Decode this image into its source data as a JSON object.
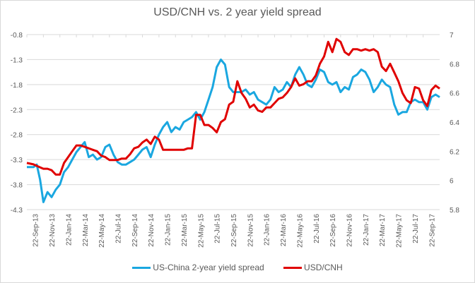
{
  "chart_data": {
    "type": "line",
    "title": "USD/CNH vs. 2 year yield spread",
    "xlabel": "",
    "ylabel_left": "",
    "ylabel_right": "",
    "grid": true,
    "legend_position": "bottom",
    "x_ticks": [
      "22-Sep-13",
      "22-Nov-13",
      "22-Jan-14",
      "22-Mar-14",
      "22-May-14",
      "22-Jul-14",
      "22-Sep-14",
      "22-Nov-14",
      "22-Jan-15",
      "22-Mar-15",
      "22-May-15",
      "22-Jul-15",
      "22-Sep-15",
      "22-Nov-15",
      "22-Jan-16",
      "22-Mar-16",
      "22-May-16",
      "22-Jul-16",
      "22-Sep-16",
      "22-Nov-16",
      "22-Jan-17",
      "22-Mar-17",
      "22-May-17",
      "22-Jul-17",
      "22-Sep-17"
    ],
    "y_left": {
      "ticks": [
        "-0.8",
        "-1.3",
        "-1.8",
        "-2.3",
        "-2.8",
        "-3.3",
        "-3.8",
        "-4.3"
      ],
      "range": [
        -4.3,
        -0.8
      ]
    },
    "y_right": {
      "ticks": [
        "7",
        "6.8",
        "6.6",
        "6.4",
        "6.2",
        "6",
        "5.8"
      ],
      "range": [
        5.8,
        7.0
      ]
    },
    "x_range_months": [
      0,
      50
    ],
    "series": [
      {
        "name": "US-China 2-year yield spread",
        "axis": "left",
        "color": "#1aa7e0",
        "x_months": [
          0,
          0.8,
          1.2,
          1.6,
          2.0,
          2.5,
          3.0,
          3.5,
          4.0,
          4.5,
          5.0,
          5.5,
          6.0,
          6.5,
          7.0,
          7.5,
          8.0,
          8.5,
          9.0,
          9.5,
          10.0,
          10.5,
          11.0,
          11.5,
          12.0,
          12.5,
          13.0,
          13.5,
          14.0,
          14.5,
          15.0,
          15.5,
          16.0,
          16.5,
          17.0,
          17.5,
          18.0,
          18.5,
          19.0,
          19.5,
          20.0,
          20.5,
          21.0,
          21.5,
          22.0,
          22.5,
          23.0,
          23.5,
          24.0,
          24.5,
          25.0,
          25.5,
          26.0,
          26.5,
          27.0,
          27.5,
          28.0,
          28.5,
          29.0,
          29.5,
          30.0,
          30.5,
          31.0,
          31.5,
          32.0,
          32.5,
          33.0,
          33.5,
          34.0,
          34.5,
          35.0,
          35.5,
          36.0,
          36.5,
          37.0,
          37.5,
          38.0,
          38.5,
          39.0,
          39.5,
          40.0,
          40.5,
          41.0,
          41.5,
          42.0,
          42.5,
          43.0,
          43.5,
          44.0,
          44.5,
          45.0,
          45.5,
          46.0,
          46.5,
          47.0,
          47.5,
          48.0,
          48.5,
          49.0,
          49.5,
          50.0
        ],
        "values": [
          -3.45,
          -3.45,
          -3.4,
          -3.7,
          -4.15,
          -3.95,
          -4.05,
          -3.9,
          -3.8,
          -3.55,
          -3.45,
          -3.3,
          -3.15,
          -3.05,
          -2.95,
          -3.25,
          -3.2,
          -3.3,
          -3.25,
          -3.05,
          -3.0,
          -3.2,
          -3.35,
          -3.4,
          -3.4,
          -3.35,
          -3.3,
          -3.2,
          -3.1,
          -3.05,
          -3.25,
          -3.0,
          -2.8,
          -2.65,
          -2.55,
          -2.75,
          -2.65,
          -2.7,
          -2.55,
          -2.5,
          -2.45,
          -2.35,
          -2.5,
          -2.35,
          -2.1,
          -1.85,
          -1.45,
          -1.3,
          -1.4,
          -1.85,
          -1.95,
          -1.95,
          -1.95,
          -1.9,
          -2.0,
          -1.95,
          -2.1,
          -2.15,
          -2.2,
          -2.1,
          -1.85,
          -1.95,
          -1.9,
          -1.75,
          -1.85,
          -1.6,
          -1.45,
          -1.6,
          -1.8,
          -1.85,
          -1.7,
          -1.5,
          -1.55,
          -1.75,
          -1.8,
          -1.75,
          -1.95,
          -1.85,
          -1.9,
          -1.65,
          -1.6,
          -1.5,
          -1.55,
          -1.7,
          -1.95,
          -1.85,
          -1.7,
          -1.8,
          -1.85,
          -2.2,
          -2.4,
          -2.35,
          -2.35,
          -2.15,
          -2.1,
          -2.15,
          -2.15,
          -2.3,
          -2.05,
          -2.0,
          -2.05
        ]
      },
      {
        "name": "USD/CNH",
        "axis": "right",
        "color": "#e00000",
        "x_months": [
          0,
          0.8,
          1.2,
          1.6,
          2.0,
          2.5,
          3.0,
          3.5,
          4.0,
          4.5,
          5.0,
          5.5,
          6.0,
          6.5,
          7.0,
          7.5,
          8.0,
          8.5,
          9.0,
          9.5,
          10.0,
          10.5,
          11.0,
          11.5,
          12.0,
          12.5,
          13.0,
          13.5,
          14.0,
          14.5,
          15.0,
          15.5,
          16.0,
          16.5,
          17.0,
          17.5,
          18.0,
          18.5,
          19.0,
          19.5,
          20.0,
          20.5,
          21.0,
          21.5,
          22.0,
          22.5,
          23.0,
          23.5,
          24.0,
          24.5,
          25.0,
          25.5,
          26.0,
          26.5,
          27.0,
          27.5,
          28.0,
          28.5,
          29.0,
          29.5,
          30.0,
          30.5,
          31.0,
          31.5,
          32.0,
          32.5,
          33.0,
          33.5,
          34.0,
          34.5,
          35.0,
          35.5,
          36.0,
          36.5,
          37.0,
          37.5,
          38.0,
          38.5,
          39.0,
          39.5,
          40.0,
          40.5,
          41.0,
          41.5,
          42.0,
          42.5,
          43.0,
          43.5,
          44.0,
          44.5,
          45.0,
          45.5,
          46.0,
          46.5,
          47.0,
          47.5,
          48.0,
          48.5,
          49.0,
          49.5,
          50.0
        ],
        "values": [
          6.12,
          6.11,
          6.1,
          6.09,
          6.08,
          6.08,
          6.07,
          6.04,
          6.04,
          6.12,
          6.16,
          6.2,
          6.24,
          6.24,
          6.23,
          6.22,
          6.21,
          6.2,
          6.17,
          6.16,
          6.14,
          6.14,
          6.14,
          6.15,
          6.15,
          6.18,
          6.22,
          6.23,
          6.26,
          6.28,
          6.25,
          6.3,
          6.28,
          6.21,
          6.21,
          6.21,
          6.21,
          6.21,
          6.21,
          6.22,
          6.22,
          6.45,
          6.45,
          6.38,
          6.38,
          6.36,
          6.33,
          6.4,
          6.42,
          6.52,
          6.54,
          6.68,
          6.6,
          6.56,
          6.5,
          6.52,
          6.48,
          6.47,
          6.5,
          6.5,
          6.53,
          6.56,
          6.57,
          6.6,
          6.64,
          6.7,
          6.65,
          6.66,
          6.68,
          6.68,
          6.72,
          6.8,
          6.85,
          6.95,
          6.88,
          6.97,
          6.95,
          6.88,
          6.86,
          6.9,
          6.9,
          6.89,
          6.9,
          6.89,
          6.9,
          6.88,
          6.78,
          6.75,
          6.8,
          6.74,
          6.68,
          6.6,
          6.55,
          6.53,
          6.64,
          6.63,
          6.55,
          6.51,
          6.62,
          6.65,
          6.63
        ]
      }
    ]
  }
}
